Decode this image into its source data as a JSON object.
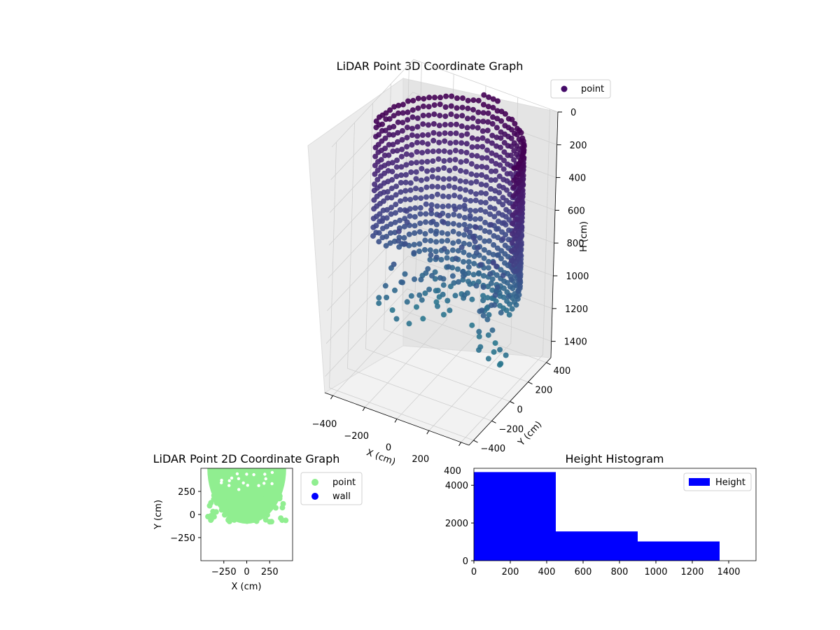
{
  "chart_data": [
    {
      "id": "lidar3d",
      "type": "scatter",
      "title": "LiDAR Point 3D Coordinate Graph",
      "xlabel": "X (cm)",
      "ylabel": "Y (cm)",
      "zlabel": "H (cm)",
      "xlim": [
        -450,
        450
      ],
      "ylim": [
        -450,
        450
      ],
      "zlim": [
        0,
        1500
      ],
      "z_inverted": true,
      "x_ticks": [
        -400,
        -200,
        0,
        200,
        400
      ],
      "y_ticks": [
        -400,
        -200,
        0,
        200,
        400
      ],
      "z_ticks": [
        0,
        200,
        400,
        600,
        800,
        1000,
        1200,
        1400
      ],
      "x_tick_labels": [
        "−400",
        "−200",
        "0",
        "200",
        "400"
      ],
      "y_tick_labels": [
        "−400",
        "−200",
        "0",
        "200",
        "400"
      ],
      "z_tick_labels": [
        "0",
        "200",
        "400",
        "600",
        "800",
        "1000",
        "1200",
        "1400"
      ],
      "legend": [
        {
          "label": "point",
          "color": "#440a68"
        }
      ],
      "legend_position": "top-right",
      "colormap": "viridis (height)",
      "grid": true,
      "description_of_data": "Points lie on a semicircular wall of radius ~430 cm (y from -100 to 430), heights from ~100 to ~1350 cm",
      "radius": 430,
      "theta_range_deg": [
        0,
        180
      ],
      "h_range": [
        100,
        1350
      ]
    },
    {
      "id": "lidar2d",
      "type": "scatter",
      "title": "LiDAR Point 2D Coordinate Graph",
      "xlabel": "X (cm)",
      "ylabel": "Y (cm)",
      "xlim": [
        -500,
        500
      ],
      "ylim": [
        -500,
        500
      ],
      "x_ticks": [
        -250,
        0,
        250
      ],
      "y_ticks": [
        -250,
        0,
        250
      ],
      "x_tick_labels": [
        "−250",
        "0",
        "250"
      ],
      "y_tick_labels": [
        "−250",
        "0",
        "250"
      ],
      "series": [
        {
          "name": "point",
          "color": "#90ee90",
          "region": "half-disk, y between -100 and 500, radius ~430"
        },
        {
          "name": "wall",
          "color": "#0000ff",
          "points": []
        }
      ],
      "legend_position": "outside-right"
    },
    {
      "id": "histogram",
      "type": "bar",
      "title": "Height Histogram",
      "xlim": [
        0,
        1550
      ],
      "ylim": [
        0,
        4900
      ],
      "x_ticks": [
        0,
        200,
        400,
        600,
        800,
        1000,
        1200,
        1400
      ],
      "y_ticks": [
        0,
        2000,
        4000
      ],
      "x_tick_labels": [
        "0",
        "200",
        "400",
        "600",
        "800",
        "1000",
        "1200",
        "1400"
      ],
      "y_tick_labels": [
        "0",
        "2000",
        "4000"
      ],
      "bins": [
        {
          "start": 0,
          "end": 450,
          "count": 4700
        },
        {
          "start": 450,
          "end": 900,
          "count": 1550
        },
        {
          "start": 900,
          "end": 1350,
          "count": 1020
        }
      ],
      "legend": [
        {
          "label": "Height",
          "color": "#0000ff"
        }
      ],
      "legend_position": "top-right"
    }
  ]
}
